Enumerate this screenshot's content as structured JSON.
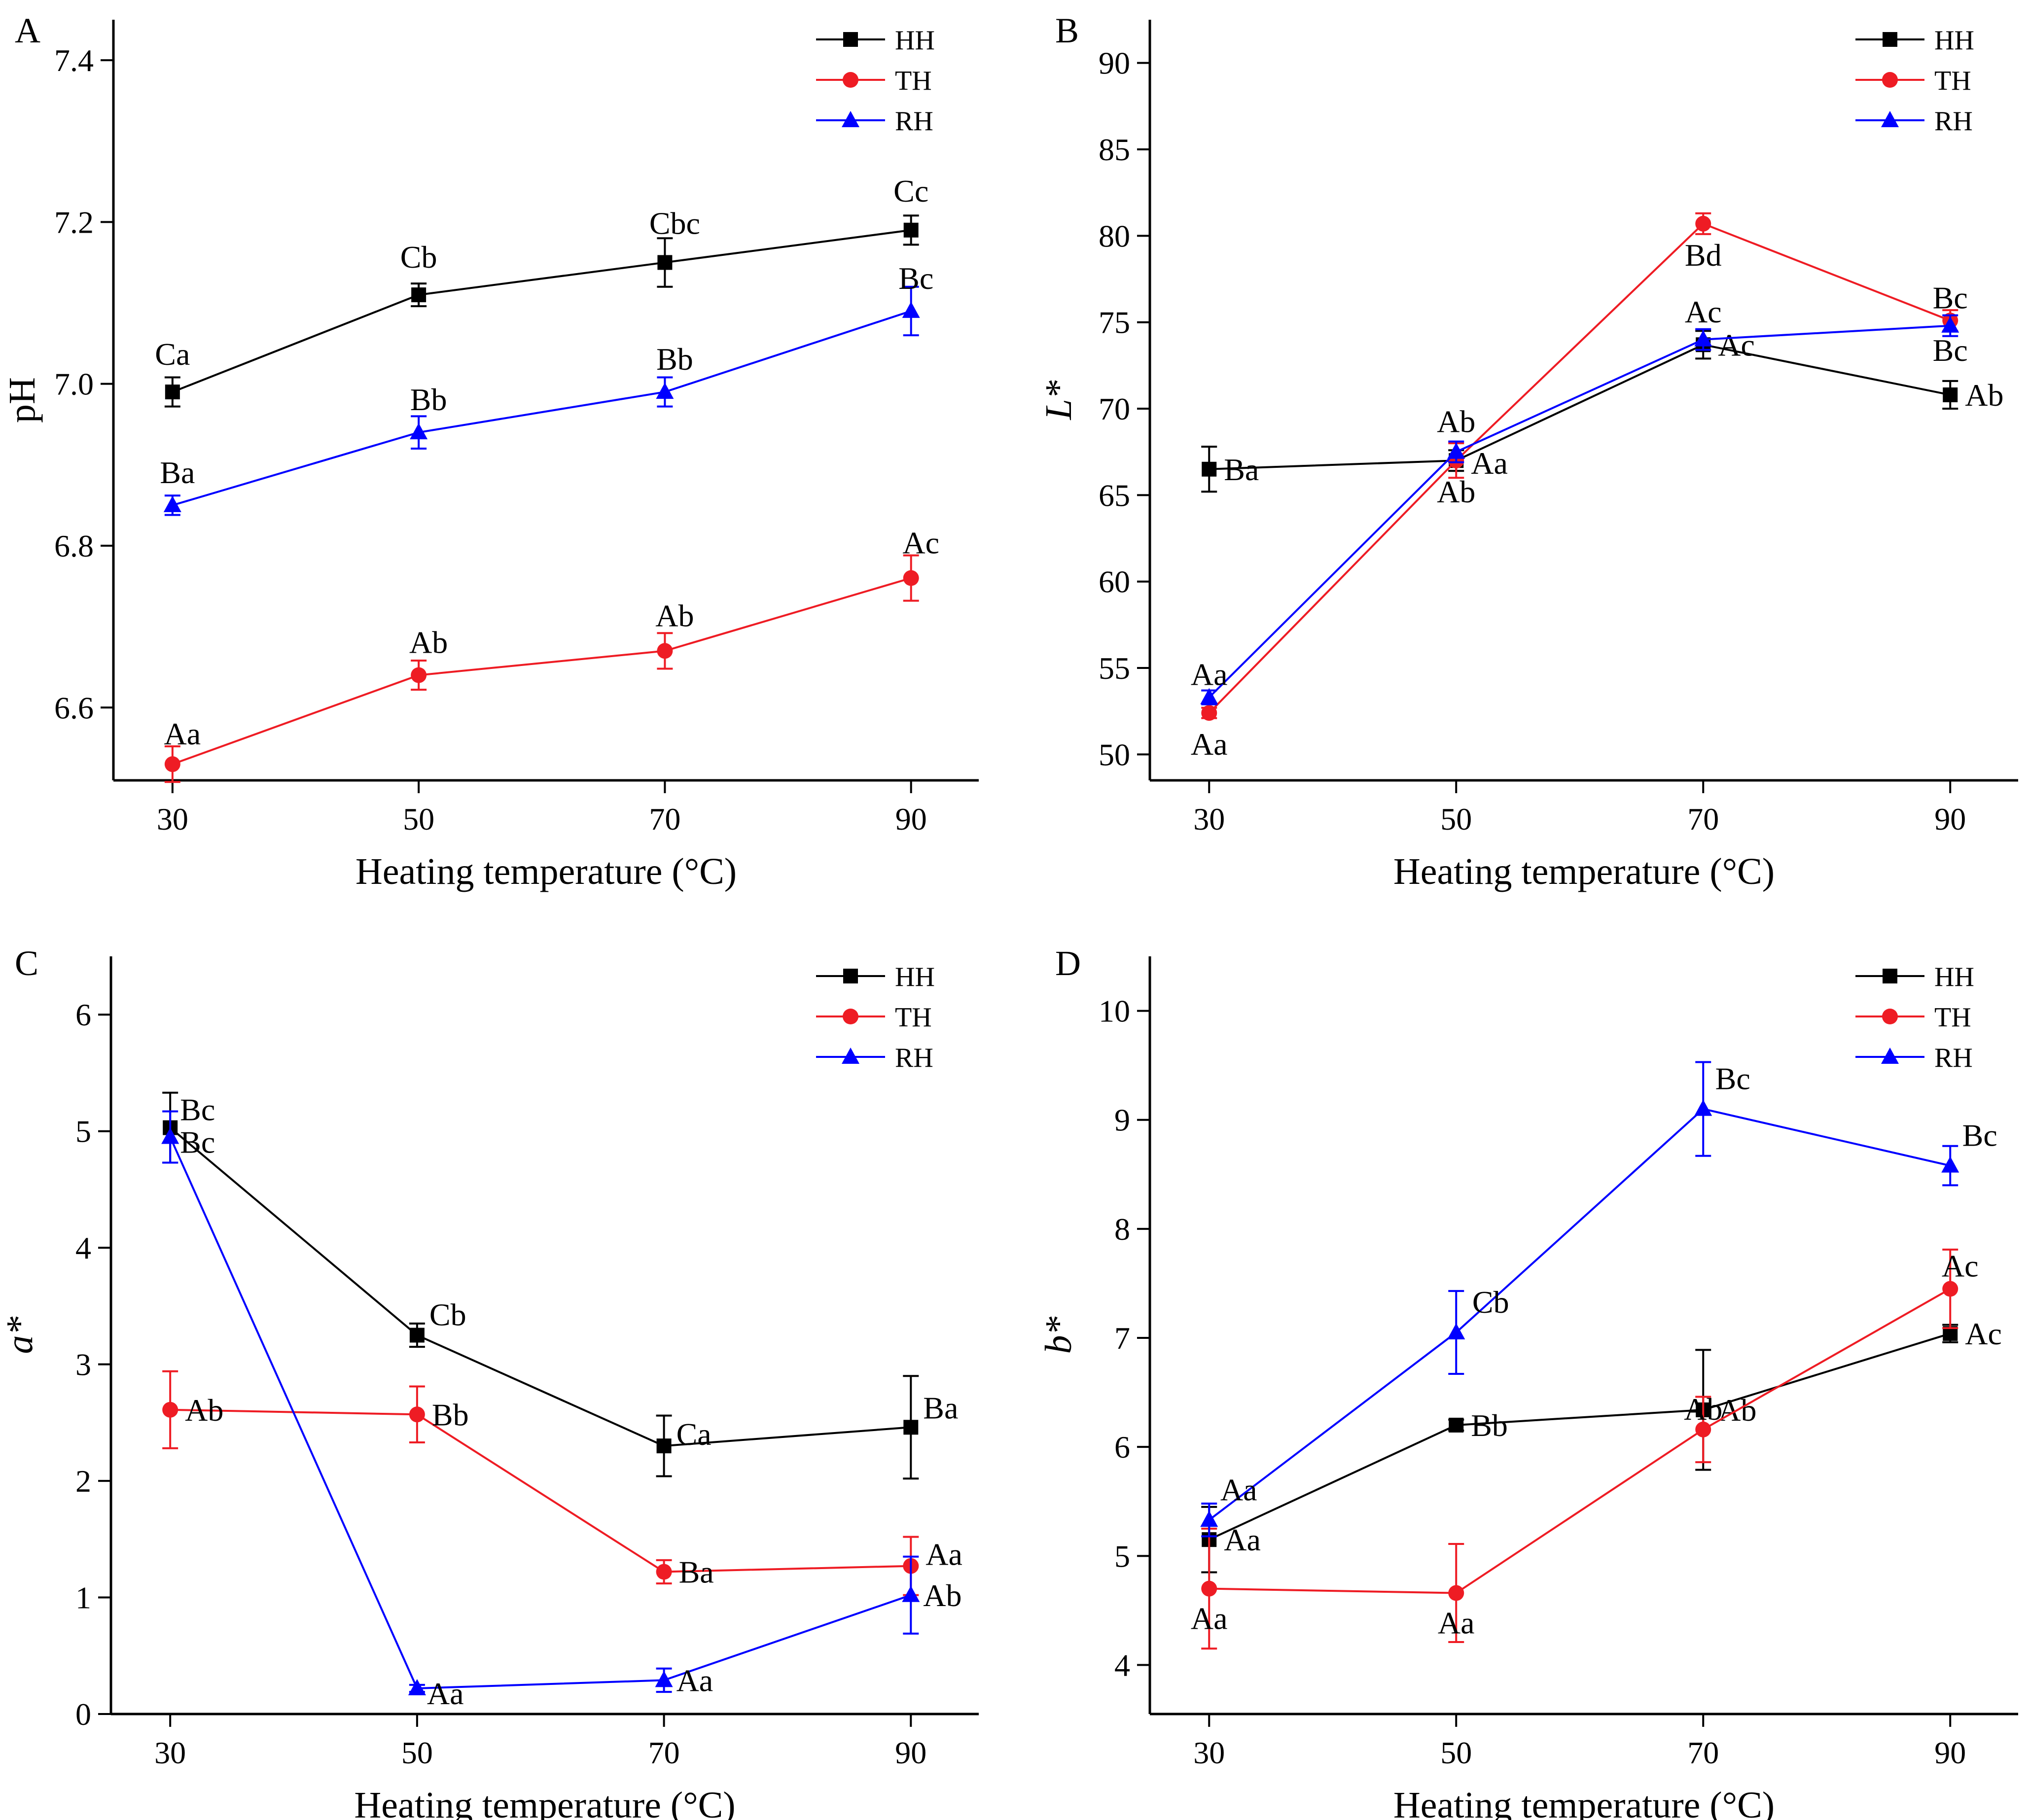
{
  "chart_data": [
    {
      "panel": "A",
      "type": "line",
      "xlabel": "Heating temperature (°C)",
      "ylabel": "pH",
      "ylabel_italic": false,
      "x": [
        30,
        50,
        70,
        90
      ],
      "xlim": [
        25.2,
        95.5
      ],
      "ylim": [
        6.51,
        7.45
      ],
      "yticks": [
        "6.6",
        "6.8",
        "7.0",
        "7.2",
        "7.4"
      ],
      "legend": "top-right",
      "grid": false,
      "series": [
        {
          "name": "HH",
          "color": "#000000",
          "marker": "square",
          "values": [
            6.99,
            7.11,
            7.15,
            7.19
          ],
          "errors": [
            0.018,
            0.014,
            0.03,
            0.018
          ],
          "labels": [
            "Ca",
            "Cb",
            "Cbc",
            "Cc"
          ]
        },
        {
          "name": "TH",
          "color": "#ee1c24",
          "marker": "circle",
          "values": [
            6.53,
            6.64,
            6.67,
            6.76
          ],
          "errors": [
            0.022,
            0.018,
            0.022,
            0.028
          ],
          "labels": [
            "Aa",
            "Ab",
            "Ab",
            "Ac"
          ]
        },
        {
          "name": "RH",
          "color": "#0000ff",
          "marker": "triangle",
          "values": [
            6.85,
            6.94,
            6.99,
            7.09
          ],
          "errors": [
            0.012,
            0.02,
            0.018,
            0.03
          ],
          "labels": [
            "Ba",
            "Bb",
            "Bb",
            "Bc"
          ]
        }
      ]
    },
    {
      "panel": "B",
      "type": "line",
      "xlabel": "Heating temperature (°C)",
      "ylabel": "L*",
      "ylabel_italic": true,
      "x": [
        30,
        50,
        70,
        90
      ],
      "xlim": [
        25.2,
        95.5
      ],
      "ylim": [
        48.5,
        92.5
      ],
      "yticks": [
        "50",
        "55",
        "60",
        "65",
        "70",
        "75",
        "80",
        "85",
        "90"
      ],
      "legend": "top-right",
      "grid": false,
      "series": [
        {
          "name": "HH",
          "color": "#000000",
          "marker": "square",
          "values": [
            66.5,
            67.0,
            73.7,
            70.8
          ],
          "errors": [
            1.3,
            0.6,
            0.8,
            0.8
          ],
          "labels": [
            "Ba",
            "Aa",
            "Ac",
            "Ab"
          ]
        },
        {
          "name": "TH",
          "color": "#ee1c24",
          "marker": "circle",
          "values": [
            52.4,
            67.0,
            80.7,
            75.1
          ],
          "errors": [
            0.3,
            1.0,
            0.6,
            0.6
          ],
          "labels": [
            "Aa",
            "Ab",
            "Bd",
            "Bc"
          ]
        },
        {
          "name": "RH",
          "color": "#0000ff",
          "marker": "triangle",
          "values": [
            53.3,
            67.5,
            74.0,
            74.8
          ],
          "errors": [
            0.4,
            0.6,
            0.6,
            0.6
          ],
          "labels": [
            "Aa",
            "Ab",
            "Ac",
            "Bc"
          ]
        }
      ]
    },
    {
      "panel": "C",
      "type": "line",
      "xlabel": "Heating temperature (°C)",
      "ylabel": "a*",
      "ylabel_italic": true,
      "x": [
        30,
        50,
        70,
        90
      ],
      "xlim": [
        25.2,
        95.5
      ],
      "ylim": [
        0,
        6.5
      ],
      "yticks": [
        "0",
        "1",
        "2",
        "3",
        "4",
        "5",
        "6"
      ],
      "legend": "top-right",
      "grid": false,
      "series": [
        {
          "name": "HH",
          "color": "#000000",
          "marker": "square",
          "values": [
            5.03,
            3.25,
            2.3,
            2.46
          ],
          "errors": [
            0.3,
            0.1,
            0.26,
            0.44
          ],
          "labels": [
            "Bc",
            "Cb",
            "Ca",
            "Ba"
          ]
        },
        {
          "name": "TH",
          "color": "#ee1c24",
          "marker": "circle",
          "values": [
            2.61,
            2.57,
            1.22,
            1.27
          ],
          "errors": [
            0.33,
            0.24,
            0.1,
            0.25
          ],
          "labels": [
            "Ab",
            "Bb",
            "Ba",
            "Aa"
          ]
        },
        {
          "name": "RH",
          "color": "#0000ff",
          "marker": "triangle",
          "values": [
            4.95,
            0.22,
            0.29,
            1.02
          ],
          "errors": [
            0.22,
            0.03,
            0.1,
            0.33
          ],
          "labels": [
            "Bc",
            "Aa",
            "Aa",
            "Ab"
          ]
        }
      ]
    },
    {
      "panel": "D",
      "type": "line",
      "xlabel": "Heating temperature (°C)",
      "ylabel": "b*",
      "ylabel_italic": true,
      "x": [
        30,
        50,
        70,
        90
      ],
      "xlim": [
        25.2,
        95.5
      ],
      "ylim": [
        3.55,
        10.5
      ],
      "yticks": [
        "4",
        "5",
        "6",
        "7",
        "8",
        "9",
        "10"
      ],
      "legend": "top-right",
      "grid": false,
      "series": [
        {
          "name": "HH",
          "color": "#000000",
          "marker": "square",
          "values": [
            5.15,
            6.2,
            6.34,
            7.04
          ],
          "errors": [
            0.3,
            0.05,
            0.55,
            0.08
          ],
          "labels": [
            "Aa",
            "Bb",
            "Ab",
            "Ac"
          ]
        },
        {
          "name": "TH",
          "color": "#ee1c24",
          "marker": "circle",
          "values": [
            4.7,
            4.66,
            6.16,
            7.45
          ],
          "errors": [
            0.55,
            0.45,
            0.3,
            0.36
          ],
          "labels": [
            "Aa",
            "Aa",
            "Ab",
            "Ac"
          ]
        },
        {
          "name": "RH",
          "color": "#0000ff",
          "marker": "triangle",
          "values": [
            5.33,
            7.05,
            9.1,
            8.58
          ],
          "errors": [
            0.15,
            0.38,
            0.43,
            0.18
          ],
          "labels": [
            "Aa",
            "Cb",
            "Bc",
            "Bc"
          ]
        }
      ]
    }
  ]
}
